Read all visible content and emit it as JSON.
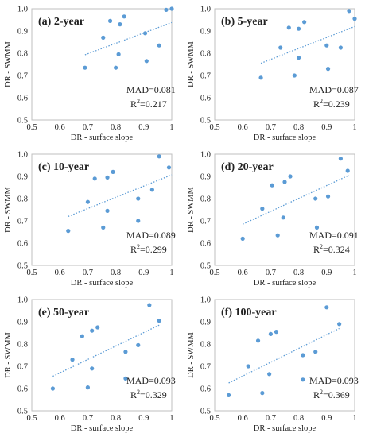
{
  "chart_data": [
    {
      "type": "scatter",
      "panel": "(a) 2-year",
      "xlabel": "DR - surface slope",
      "ylabel": "DR - SWMM",
      "xlim": [
        0.5,
        1.0
      ],
      "ylim": [
        0.5,
        1.0
      ],
      "xticks": [
        "0.5",
        "0.6",
        "0.7",
        "0.8",
        "0.9",
        "1"
      ],
      "yticks": [
        "0.5",
        "0.6",
        "0.7",
        "0.8",
        "0.9",
        "1.0"
      ],
      "mad": "MAD=0.081",
      "r2_prefix": "R",
      "r2_exp": "2",
      "r2_value": "=0.217",
      "trendline": [
        [
          0.69,
          0.793
        ],
        [
          1.0,
          0.938
        ]
      ],
      "points": [
        [
          0.69,
          0.735
        ],
        [
          0.755,
          0.87
        ],
        [
          0.78,
          0.945
        ],
        [
          0.8,
          0.735
        ],
        [
          0.81,
          0.795
        ],
        [
          0.815,
          0.93
        ],
        [
          0.83,
          0.965
        ],
        [
          0.905,
          0.89
        ],
        [
          0.91,
          0.765
        ],
        [
          0.955,
          0.835
        ],
        [
          0.98,
          0.995
        ],
        [
          1.0,
          1.0
        ]
      ]
    },
    {
      "type": "scatter",
      "panel": "(b) 5-year",
      "xlabel": "DR - surface slope",
      "ylabel": "DR - SWMM",
      "xlim": [
        0.5,
        1.0
      ],
      "ylim": [
        0.5,
        1.0
      ],
      "xticks": [
        "0.5",
        "0.6",
        "0.7",
        "0.8",
        "0.9",
        "1"
      ],
      "yticks": [
        "0.5",
        "0.6",
        "0.7",
        "0.8",
        "0.9",
        "1.0"
      ],
      "mad": "MAD=0.087",
      "r2_prefix": "R",
      "r2_exp": "2",
      "r2_value": "=0.239",
      "trendline": [
        [
          0.665,
          0.755
        ],
        [
          1.0,
          0.92
        ]
      ],
      "points": [
        [
          0.665,
          0.69
        ],
        [
          0.735,
          0.825
        ],
        [
          0.765,
          0.915
        ],
        [
          0.785,
          0.7
        ],
        [
          0.8,
          0.78
        ],
        [
          0.8,
          0.91
        ],
        [
          0.82,
          0.94
        ],
        [
          0.9,
          0.835
        ],
        [
          0.905,
          0.73
        ],
        [
          0.95,
          0.825
        ],
        [
          0.98,
          0.99
        ],
        [
          1.0,
          0.955
        ]
      ]
    },
    {
      "type": "scatter",
      "panel": "(c) 10-year",
      "xlabel": "DR - surface slope",
      "ylabel": "DR - SWMM",
      "xlim": [
        0.5,
        1.0
      ],
      "ylim": [
        0.5,
        1.0
      ],
      "xticks": [
        "0.5",
        "0.6",
        "0.7",
        "0.8",
        "0.9",
        "1"
      ],
      "yticks": [
        "0.5",
        "0.6",
        "0.7",
        "0.8",
        "0.9",
        "1.0"
      ],
      "mad": "MAD=0.089",
      "r2_prefix": "R",
      "r2_exp": "2",
      "r2_value": "=0.299",
      "trendline": [
        [
          0.63,
          0.72
        ],
        [
          1.0,
          0.907
        ]
      ],
      "points": [
        [
          0.63,
          0.655
        ],
        [
          0.7,
          0.785
        ],
        [
          0.725,
          0.89
        ],
        [
          0.755,
          0.67
        ],
        [
          0.77,
          0.745
        ],
        [
          0.77,
          0.895
        ],
        [
          0.79,
          0.92
        ],
        [
          0.88,
          0.8
        ],
        [
          0.88,
          0.7
        ],
        [
          0.93,
          0.84
        ],
        [
          0.955,
          0.99
        ],
        [
          0.99,
          0.94
        ]
      ]
    },
    {
      "type": "scatter",
      "panel": "(d) 20-year",
      "xlabel": "DR - surface slope",
      "ylabel": "DR - SWMM",
      "xlim": [
        0.5,
        1.0
      ],
      "ylim": [
        0.5,
        1.0
      ],
      "xticks": [
        "0.5",
        "0.6",
        "0.7",
        "0.8",
        "0.9",
        "1"
      ],
      "yticks": [
        "0.5",
        "0.6",
        "0.7",
        "0.8",
        "0.9",
        "1.0"
      ],
      "mad": "MAD=0.091",
      "r2_prefix": "R",
      "r2_exp": "2",
      "r2_value": "=0.324",
      "trendline": [
        [
          0.6,
          0.685
        ],
        [
          0.98,
          0.905
        ]
      ],
      "points": [
        [
          0.6,
          0.62
        ],
        [
          0.67,
          0.755
        ],
        [
          0.705,
          0.86
        ],
        [
          0.725,
          0.635
        ],
        [
          0.745,
          0.715
        ],
        [
          0.75,
          0.875
        ],
        [
          0.77,
          0.9
        ],
        [
          0.86,
          0.8
        ],
        [
          0.865,
          0.67
        ],
        [
          0.905,
          0.81
        ],
        [
          0.95,
          0.98
        ],
        [
          0.975,
          0.925
        ]
      ]
    },
    {
      "type": "scatter",
      "panel": "(e) 50-year",
      "xlabel": "DR - surface slope",
      "ylabel": "DR - SWMM",
      "xlim": [
        0.5,
        1.0
      ],
      "ylim": [
        0.5,
        1.0
      ],
      "xticks": [
        "0.5",
        "0.6",
        "0.7",
        "0.8",
        "0.9",
        "1"
      ],
      "yticks": [
        "0.5",
        "0.6",
        "0.7",
        "0.8",
        "0.9",
        "1.0"
      ],
      "mad": "MAD=0.093",
      "r2_prefix": "R",
      "r2_exp": "2",
      "r2_value": "=0.329",
      "trendline": [
        [
          0.575,
          0.655
        ],
        [
          0.955,
          0.885
        ]
      ],
      "points": [
        [
          0.575,
          0.6
        ],
        [
          0.645,
          0.73
        ],
        [
          0.68,
          0.835
        ],
        [
          0.7,
          0.605
        ],
        [
          0.715,
          0.69
        ],
        [
          0.715,
          0.86
        ],
        [
          0.735,
          0.875
        ],
        [
          0.835,
          0.765
        ],
        [
          0.835,
          0.645
        ],
        [
          0.88,
          0.795
        ],
        [
          0.92,
          0.975
        ],
        [
          0.955,
          0.905
        ]
      ]
    },
    {
      "type": "scatter",
      "panel": "(f) 100-year",
      "xlabel": "DR - surface slope",
      "ylabel": "DR - SWMM",
      "xlim": [
        0.5,
        1.0
      ],
      "ylim": [
        0.5,
        1.0
      ],
      "xticks": [
        "0.5",
        "0.6",
        "0.7",
        "0.8",
        "0.9",
        "1"
      ],
      "yticks": [
        "0.5",
        "0.6",
        "0.7",
        "0.8",
        "0.9",
        "1.0"
      ],
      "mad": "MAD=0.093",
      "r2_prefix": "R",
      "r2_exp": "2",
      "r2_value": "=0.369",
      "trendline": [
        [
          0.55,
          0.625
        ],
        [
          0.945,
          0.87
        ]
      ],
      "points": [
        [
          0.55,
          0.57
        ],
        [
          0.62,
          0.7
        ],
        [
          0.655,
          0.815
        ],
        [
          0.67,
          0.58
        ],
        [
          0.695,
          0.665
        ],
        [
          0.7,
          0.845
        ],
        [
          0.72,
          0.855
        ],
        [
          0.815,
          0.75
        ],
        [
          0.815,
          0.64
        ],
        [
          0.86,
          0.765
        ],
        [
          0.9,
          0.965
        ],
        [
          0.945,
          0.89
        ]
      ]
    }
  ]
}
